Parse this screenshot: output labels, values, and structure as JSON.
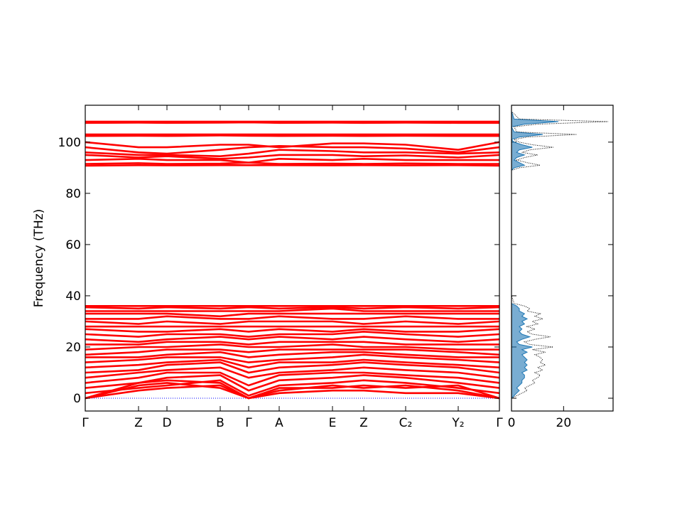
{
  "chart_data": [
    {
      "type": "line",
      "ylabel": "Frequency (THz)",
      "x": [
        0,
        75,
        115,
        190,
        230,
        273,
        348,
        392,
        451,
        525,
        583
      ],
      "xlim": [
        0,
        583
      ],
      "xticks": [
        {
          "value": 0,
          "label": "Γ"
        },
        {
          "value": 75,
          "label": "Z"
        },
        {
          "value": 115,
          "label": "D"
        },
        {
          "value": 190,
          "label": "B"
        },
        {
          "value": 230,
          "label": "Γ"
        },
        {
          "value": 273,
          "label": "A"
        },
        {
          "value": 348,
          "label": "E"
        },
        {
          "value": 392,
          "label": "Z"
        },
        {
          "value": 451,
          "label": "C₂"
        },
        {
          "value": 525,
          "label": "Y₂"
        },
        {
          "value": 583,
          "label": "Γ"
        }
      ],
      "ylim": [
        -5,
        114.4
      ],
      "yticks": [
        0,
        20,
        40,
        60,
        80,
        100
      ],
      "series": [
        {
          "color": "#0000ff",
          "linestyle": "dotted",
          "values": [
            0,
            0,
            0,
            0,
            0,
            0,
            0,
            0,
            0,
            0,
            0
          ]
        },
        {
          "color": "#ff0000",
          "values": [
            108,
            108,
            108,
            108,
            108,
            108,
            108,
            108,
            108,
            108,
            108
          ]
        },
        {
          "color": "#ff0000",
          "values": [
            107.5,
            107.6,
            107.5,
            107.6,
            107.7,
            107.5,
            107.6,
            107.5,
            107.6,
            107.5,
            107.5
          ]
        },
        {
          "color": "#ff0000",
          "values": [
            103,
            103,
            103,
            103,
            103,
            103,
            103,
            103,
            103,
            103,
            103
          ]
        },
        {
          "color": "#ff0000",
          "values": [
            102.4,
            102.5,
            102.4,
            102.6,
            102.5,
            102.4,
            102.5,
            102.4,
            102.5,
            102.4,
            102.4
          ]
        },
        {
          "color": "#ff0000",
          "values": [
            100,
            98,
            98,
            99,
            99,
            98,
            99.5,
            99.5,
            99,
            97,
            100
          ]
        },
        {
          "color": "#ff0000",
          "values": [
            98,
            96,
            95.5,
            97,
            98,
            98.5,
            98,
            98,
            97.5,
            96,
            98
          ]
        },
        {
          "color": "#ff0000",
          "values": [
            96,
            95,
            95,
            94.5,
            95.5,
            97,
            96.5,
            96,
            96,
            95.5,
            96
          ]
        },
        {
          "color": "#ff0000",
          "values": [
            95,
            94,
            94.5,
            93.5,
            94,
            95,
            95,
            94.5,
            94.8,
            94,
            95
          ]
        },
        {
          "color": "#ff0000",
          "values": [
            93,
            93.5,
            93,
            93,
            92,
            93.5,
            93,
            93.5,
            93,
            93,
            93
          ]
        },
        {
          "color": "#ff0000",
          "values": [
            91.5,
            91.8,
            91.5,
            91.6,
            92,
            91.5,
            91.6,
            91.5,
            91.7,
            91.5,
            91.5
          ]
        },
        {
          "color": "#ff0000",
          "values": [
            90.8,
            91,
            90.9,
            91,
            91,
            91,
            90.9,
            91,
            90.9,
            91,
            90.8
          ]
        },
        {
          "color": "#ff0000",
          "values": [
            0,
            3,
            4,
            5,
            0,
            2,
            3,
            3,
            2,
            2,
            0
          ]
        },
        {
          "color": "#ff0000",
          "values": [
            0,
            5,
            6,
            4,
            0,
            3,
            5,
            4,
            5,
            3,
            0
          ]
        },
        {
          "color": "#ff0000",
          "values": [
            0,
            6,
            7,
            6,
            0,
            4,
            4,
            5,
            4,
            5,
            0
          ]
        },
        {
          "color": "#ff0000",
          "values": [
            2,
            4,
            5,
            7,
            1,
            5,
            6,
            7,
            6,
            4,
            2
          ]
        },
        {
          "color": "#ff0000",
          "values": [
            4,
            6,
            8,
            9,
            3,
            7,
            8,
            9,
            8,
            6,
            4
          ]
        },
        {
          "color": "#ff0000",
          "values": [
            6,
            8,
            10,
            10,
            5,
            9,
            10,
            10,
            9,
            8,
            6
          ]
        },
        {
          "color": "#ff0000",
          "values": [
            8,
            10,
            11,
            12,
            8,
            10,
            11,
            12,
            11,
            10,
            8
          ]
        },
        {
          "color": "#ff0000",
          "values": [
            10,
            11,
            13,
            14,
            10,
            12,
            13,
            14,
            13,
            12,
            10
          ]
        },
        {
          "color": "#ff0000",
          "values": [
            12,
            13,
            14,
            15,
            12,
            14,
            14,
            15,
            14,
            13,
            12
          ]
        },
        {
          "color": "#ff0000",
          "values": [
            14,
            15,
            16,
            16,
            14,
            15,
            16,
            17,
            16,
            15,
            14
          ]
        },
        {
          "color": "#ff0000",
          "values": [
            16,
            16,
            17,
            18,
            16,
            17,
            18,
            18,
            17,
            16,
            16
          ]
        },
        {
          "color": "#ff0000",
          "values": [
            17,
            18,
            19,
            19,
            18,
            19,
            19,
            19,
            19,
            18,
            17
          ]
        },
        {
          "color": "#ff0000",
          "values": [
            19,
            20,
            20,
            21,
            20,
            20,
            21,
            20,
            20,
            19,
            19
          ]
        },
        {
          "color": "#ff0000",
          "values": [
            21,
            21,
            22,
            22,
            21,
            22,
            22,
            22,
            21,
            21,
            21
          ]
        },
        {
          "color": "#ff0000",
          "values": [
            23,
            22,
            23,
            24,
            23,
            24,
            23,
            24,
            23,
            22,
            23
          ]
        },
        {
          "color": "#ff0000",
          "values": [
            25,
            24,
            25,
            25,
            24,
            25,
            25,
            26,
            25,
            24,
            25
          ]
        },
        {
          "color": "#ff0000",
          "values": [
            27,
            26,
            26,
            27,
            26,
            27,
            26,
            27,
            26,
            26,
            27
          ]
        },
        {
          "color": "#ff0000",
          "values": [
            28,
            28,
            28,
            28,
            28,
            28,
            28,
            28,
            28,
            28,
            28
          ]
        },
        {
          "color": "#ff0000",
          "values": [
            30,
            29,
            30,
            29,
            30,
            30,
            30,
            29,
            30,
            29,
            30
          ]
        },
        {
          "color": "#ff0000",
          "values": [
            31,
            31,
            32,
            31,
            31,
            32,
            31,
            31,
            32,
            31,
            31
          ]
        },
        {
          "color": "#ff0000",
          "values": [
            33,
            33,
            33,
            32,
            33,
            33,
            33,
            33,
            33,
            33,
            33
          ]
        },
        {
          "color": "#ff0000",
          "values": [
            34,
            34,
            34,
            34,
            34,
            34,
            35,
            34,
            34,
            34,
            34
          ]
        },
        {
          "color": "#ff0000",
          "values": [
            35.5,
            35,
            35.5,
            35,
            35.5,
            35,
            35.5,
            35,
            35.5,
            35,
            35.5
          ]
        },
        {
          "color": "#ff0000",
          "values": [
            36,
            36,
            36,
            36,
            36,
            36,
            36,
            36,
            36,
            36,
            36
          ]
        }
      ]
    },
    {
      "type": "dos",
      "frequency": [
        0,
        1,
        2,
        3,
        4,
        5,
        6,
        7,
        8,
        9,
        10,
        11,
        12,
        13,
        14,
        15,
        16,
        17,
        18,
        19,
        20,
        21,
        22,
        23,
        24,
        25,
        26,
        27,
        28,
        29,
        30,
        31,
        32,
        33,
        34,
        35,
        36,
        37,
        40,
        60,
        89,
        90,
        91,
        92,
        93,
        94,
        95,
        96,
        97,
        98,
        99,
        100,
        101,
        102,
        103,
        104,
        106,
        107,
        108,
        109,
        112
      ],
      "xlim": [
        0,
        39
      ],
      "xticks": [
        0,
        20
      ],
      "ylim": [
        -5,
        114.4
      ],
      "series": [
        {
          "color": "#1f77b4",
          "values": [
            0,
            1,
            2,
            3,
            2,
            3,
            4,
            4,
            5,
            5,
            4,
            6,
            5,
            6,
            5,
            6,
            5,
            4,
            6,
            4,
            8,
            3,
            2,
            4,
            7,
            4,
            3,
            4,
            3,
            5,
            4,
            6,
            4,
            5,
            3,
            3,
            2,
            0,
            0,
            0,
            0,
            1,
            5,
            3,
            1,
            2,
            5,
            2,
            3,
            8,
            4,
            1,
            0,
            3,
            12,
            1,
            0,
            5,
            18,
            1,
            0
          ]
        },
        {
          "color": "#000000",
          "linestyle": "dotted",
          "values": [
            0,
            2,
            4,
            6,
            5,
            7,
            9,
            8,
            10,
            11,
            9,
            12,
            10,
            13,
            11,
            12,
            11,
            9,
            13,
            8,
            16,
            7,
            5,
            9,
            15,
            8,
            6,
            9,
            6,
            10,
            8,
            12,
            9,
            11,
            6,
            7,
            5,
            1,
            0,
            0,
            0,
            3,
            11,
            6,
            2,
            5,
            10,
            4,
            7,
            16,
            8,
            3,
            1,
            6,
            25,
            2,
            1,
            10,
            37,
            3,
            0
          ]
        }
      ]
    }
  ]
}
